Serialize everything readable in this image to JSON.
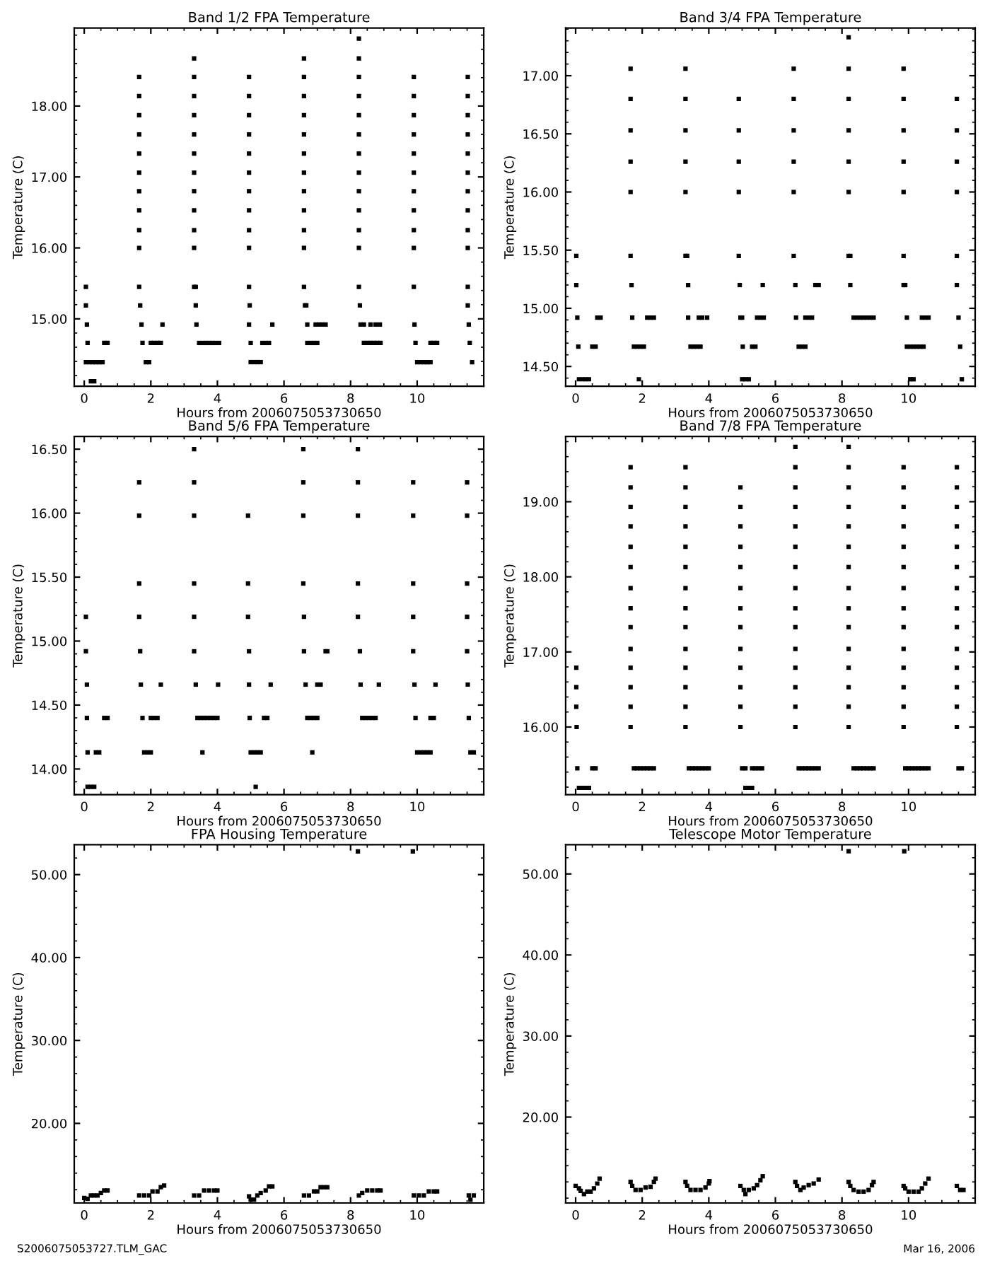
{
  "chart_data": [
    {
      "type": "scatter",
      "title": "Band 1/2 FPA Temperature",
      "xlabel": "Hours from 2006075053730650",
      "ylabel": "Temperature (C)",
      "color": "#000000",
      "marker": "square",
      "grid": false,
      "legend": false,
      "xlim": [
        -0.3,
        12.0
      ],
      "xticks": [
        0,
        2,
        4,
        6,
        8,
        10
      ],
      "ylim": [
        14.05,
        19.1
      ],
      "yticks": [
        {
          "value": 15,
          "label": "15.00"
        },
        {
          "value": 16,
          "label": "16.00"
        },
        {
          "value": 17,
          "label": "17.00"
        },
        {
          "value": 18,
          "label": "18.00"
        }
      ],
      "x": [
        0.05,
        0.05,
        0.08,
        0.1,
        0.05,
        0.15,
        0.25,
        0.35,
        0.45,
        0.55,
        0.2,
        0.3,
        0.6,
        0.7,
        1.65,
        1.65,
        1.65,
        1.65,
        1.65,
        1.65,
        1.65,
        1.65,
        1.65,
        1.65,
        1.65,
        1.68,
        1.72,
        1.75,
        1.85,
        1.95,
        2.0,
        2.1,
        2.2,
        2.3,
        2.35,
        3.3,
        3.3,
        3.3,
        3.3,
        3.3,
        3.3,
        3.3,
        3.3,
        3.3,
        3.3,
        3.3,
        3.3,
        3.35,
        3.35,
        3.37,
        3.45,
        3.55,
        3.65,
        3.75,
        3.85,
        3.95,
        4.05,
        4.95,
        4.95,
        4.95,
        4.95,
        4.95,
        4.95,
        4.95,
        4.95,
        4.95,
        4.95,
        4.95,
        4.97,
        4.95,
        5.0,
        5.0,
        5.1,
        5.2,
        5.3,
        5.35,
        5.45,
        5.55,
        5.65,
        6.6,
        6.6,
        6.6,
        6.6,
        6.6,
        6.6,
        6.6,
        6.6,
        6.6,
        6.6,
        6.6,
        6.6,
        6.63,
        6.67,
        6.7,
        6.7,
        6.8,
        6.9,
        7.0,
        6.95,
        7.05,
        7.15,
        7.25,
        8.25,
        8.25,
        8.25,
        8.25,
        8.25,
        8.25,
        8.25,
        8.25,
        8.25,
        8.25,
        8.25,
        8.25,
        8.25,
        8.28,
        8.3,
        8.4,
        8.4,
        8.5,
        8.6,
        8.7,
        8.8,
        8.9,
        8.6,
        8.75,
        8.88,
        9.9,
        9.9,
        9.9,
        9.9,
        9.9,
        9.9,
        9.9,
        9.9,
        9.9,
        9.9,
        9.9,
        9.92,
        9.95,
        10.0,
        10.1,
        10.2,
        10.3,
        10.4,
        10.4,
        10.5,
        10.6,
        11.52,
        11.52,
        11.52,
        11.52,
        11.52,
        11.52,
        11.52,
        11.52,
        11.52,
        11.52,
        11.52,
        11.52,
        11.55,
        11.58,
        11.65
      ],
      "values": [
        15.45,
        15.19,
        14.92,
        14.66,
        14.39,
        14.39,
        14.39,
        14.39,
        14.39,
        14.39,
        14.12,
        14.12,
        14.66,
        14.66,
        16.0,
        16.25,
        16.53,
        16.8,
        17.06,
        17.33,
        17.6,
        17.87,
        18.14,
        18.41,
        15.45,
        15.19,
        14.92,
        14.66,
        14.39,
        14.39,
        14.66,
        14.66,
        14.66,
        14.66,
        14.92,
        16.0,
        16.25,
        16.53,
        16.8,
        17.06,
        17.33,
        17.6,
        17.87,
        18.14,
        18.41,
        18.67,
        15.45,
        15.45,
        15.19,
        14.92,
        14.66,
        14.66,
        14.66,
        14.66,
        14.66,
        14.66,
        14.66,
        16.0,
        16.25,
        16.53,
        16.8,
        17.06,
        17.33,
        17.6,
        17.87,
        18.14,
        18.41,
        15.45,
        15.19,
        14.92,
        14.66,
        14.39,
        14.39,
        14.39,
        14.39,
        14.66,
        14.66,
        14.66,
        14.92,
        16.0,
        16.25,
        16.53,
        16.8,
        17.06,
        17.33,
        17.6,
        17.87,
        18.14,
        18.41,
        18.67,
        15.45,
        15.19,
        15.19,
        14.92,
        14.66,
        14.66,
        14.66,
        14.66,
        14.92,
        14.92,
        14.92,
        14.92,
        16.0,
        16.25,
        16.53,
        16.8,
        17.06,
        17.33,
        17.6,
        17.87,
        18.14,
        18.41,
        18.67,
        18.95,
        15.45,
        15.19,
        14.92,
        14.92,
        14.66,
        14.66,
        14.66,
        14.66,
        14.66,
        14.66,
        14.92,
        14.92,
        14.92,
        16.0,
        16.25,
        16.53,
        16.8,
        17.06,
        17.33,
        17.6,
        17.87,
        18.14,
        18.41,
        15.45,
        14.92,
        14.66,
        14.39,
        14.39,
        14.39,
        14.39,
        14.39,
        14.66,
        14.66,
        14.66,
        16.0,
        16.25,
        16.53,
        16.8,
        17.06,
        17.33,
        17.6,
        17.87,
        18.14,
        18.41,
        15.45,
        15.19,
        14.92,
        14.66,
        14.39
      ]
    },
    {
      "type": "scatter",
      "title": "Band 3/4 FPA Temperature",
      "xlabel": "Hours from 2006075053730650",
      "ylabel": "Temperature (C)",
      "color": "#000000",
      "marker": "square",
      "grid": false,
      "legend": false,
      "xlim": [
        -0.3,
        12.0
      ],
      "xticks": [
        0,
        2,
        4,
        6,
        8,
        10
      ],
      "ylim": [
        14.33,
        17.41
      ],
      "yticks": [
        {
          "value": 14.5,
          "label": "14.50"
        },
        {
          "value": 15,
          "label": "15.00"
        },
        {
          "value": 15.5,
          "label": "15.50"
        },
        {
          "value": 16,
          "label": "16.00"
        },
        {
          "value": 16.5,
          "label": "16.50"
        },
        {
          "value": 17,
          "label": "17.00"
        }
      ],
      "x": [
        0.02,
        0.02,
        0.05,
        0.08,
        0.1,
        0.2,
        0.3,
        0.4,
        0.5,
        0.6,
        0.65,
        0.75,
        1.65,
        1.65,
        1.65,
        1.65,
        1.65,
        1.65,
        1.68,
        1.7,
        1.75,
        1.85,
        1.95,
        2.05,
        1.9,
        2.15,
        2.25,
        2.35,
        3.3,
        3.3,
        3.3,
        3.3,
        3.3,
        3.3,
        3.35,
        3.38,
        3.38,
        3.45,
        3.55,
        3.65,
        3.75,
        3.7,
        3.8,
        3.95,
        4.9,
        4.9,
        4.9,
        4.9,
        4.9,
        4.93,
        4.95,
        5.0,
        5.02,
        5.0,
        5.1,
        5.2,
        5.3,
        5.4,
        5.45,
        5.55,
        5.65,
        5.62,
        6.55,
        6.55,
        6.55,
        6.55,
        6.55,
        6.55,
        6.6,
        6.62,
        6.7,
        6.8,
        6.9,
        6.9,
        7.0,
        7.1,
        7.2,
        7.3,
        8.2,
        8.2,
        8.2,
        8.2,
        8.2,
        8.2,
        8.2,
        8.25,
        8.25,
        8.35,
        8.45,
        8.55,
        8.65,
        8.75,
        8.85,
        8.95,
        9.85,
        9.85,
        9.85,
        9.85,
        9.85,
        9.85,
        9.85,
        9.9,
        9.95,
        9.95,
        10.05,
        10.15,
        10.25,
        10.35,
        10.45,
        10.05,
        10.15,
        10.4,
        10.5,
        10.6,
        11.45,
        11.45,
        11.45,
        11.45,
        11.45,
        11.45,
        11.5,
        11.55,
        11.6
      ],
      "values": [
        15.45,
        15.2,
        14.92,
        14.67,
        14.39,
        14.39,
        14.39,
        14.39,
        14.67,
        14.67,
        14.92,
        14.92,
        16.0,
        16.26,
        16.53,
        16.8,
        17.06,
        15.45,
        15.2,
        14.92,
        14.67,
        14.67,
        14.67,
        14.67,
        14.39,
        14.92,
        14.92,
        14.92,
        16.0,
        16.26,
        16.53,
        16.8,
        17.06,
        15.45,
        15.45,
        15.2,
        14.92,
        14.67,
        14.67,
        14.67,
        14.67,
        14.92,
        14.92,
        14.92,
        16.0,
        16.26,
        16.53,
        16.8,
        15.45,
        15.2,
        14.92,
        14.92,
        14.67,
        14.39,
        14.39,
        14.39,
        14.67,
        14.67,
        14.92,
        14.92,
        14.92,
        15.2,
        16.0,
        16.26,
        16.53,
        16.8,
        17.06,
        15.45,
        15.2,
        14.92,
        14.67,
        14.67,
        14.67,
        14.92,
        14.92,
        14.92,
        15.2,
        15.2,
        16.0,
        16.26,
        16.53,
        16.8,
        17.06,
        17.33,
        15.45,
        15.45,
        15.2,
        14.92,
        14.92,
        14.92,
        14.92,
        14.92,
        14.92,
        14.92,
        16.0,
        16.26,
        16.53,
        16.8,
        17.06,
        15.45,
        15.2,
        15.2,
        14.92,
        14.67,
        14.67,
        14.67,
        14.67,
        14.67,
        14.67,
        14.39,
        14.39,
        14.92,
        14.92,
        14.92,
        16.0,
        16.26,
        16.53,
        16.8,
        15.45,
        15.2,
        14.92,
        14.67,
        14.39
      ]
    },
    {
      "type": "scatter",
      "title": "Band 5/6 FPA Temperature",
      "xlabel": "Hours from 2006075053730650",
      "ylabel": "Temperature (C)",
      "color": "#000000",
      "marker": "square",
      "grid": false,
      "legend": false,
      "xlim": [
        -0.3,
        12.0
      ],
      "xticks": [
        0,
        2,
        4,
        6,
        8,
        10
      ],
      "ylim": [
        13.8,
        16.6
      ],
      "yticks": [
        {
          "value": 14,
          "label": "14.00"
        },
        {
          "value": 14.5,
          "label": "14.50"
        },
        {
          "value": 15,
          "label": "15.00"
        },
        {
          "value": 15.5,
          "label": "15.50"
        },
        {
          "value": 16,
          "label": "16.00"
        },
        {
          "value": 16.5,
          "label": "16.50"
        }
      ],
      "x": [
        0.05,
        0.05,
        0.08,
        0.08,
        0.1,
        0.1,
        0.2,
        0.3,
        0.35,
        0.45,
        0.6,
        0.7,
        1.65,
        1.65,
        1.65,
        1.65,
        1.68,
        1.7,
        1.75,
        1.8,
        1.9,
        2.0,
        2.0,
        2.1,
        2.2,
        2.3,
        3.3,
        3.3,
        3.3,
        3.3,
        3.3,
        3.3,
        3.35,
        3.4,
        3.5,
        3.6,
        3.7,
        3.8,
        3.9,
        4.0,
        3.55,
        4.02,
        4.92,
        4.92,
        4.92,
        4.95,
        4.95,
        4.97,
        5.0,
        5.1,
        5.2,
        5.3,
        5.15,
        5.4,
        5.5,
        5.6,
        6.58,
        6.58,
        6.58,
        6.58,
        6.6,
        6.6,
        6.65,
        6.7,
        6.8,
        6.9,
        7.0,
        6.85,
        7.0,
        7.1,
        7.25,
        7.3,
        8.22,
        8.22,
        8.22,
        8.22,
        8.22,
        8.28,
        8.3,
        8.35,
        8.45,
        8.55,
        8.65,
        8.75,
        8.85,
        9.88,
        9.88,
        9.88,
        9.88,
        9.88,
        9.92,
        9.95,
        10.0,
        10.1,
        10.2,
        10.3,
        10.4,
        10.4,
        10.5,
        10.55,
        11.5,
        11.5,
        11.5,
        11.5,
        11.5,
        11.52,
        11.55,
        11.6,
        11.7
      ],
      "values": [
        15.19,
        14.92,
        14.66,
        14.4,
        14.13,
        13.86,
        13.86,
        13.86,
        14.13,
        14.13,
        14.4,
        14.4,
        15.45,
        15.98,
        16.24,
        15.19,
        14.92,
        14.66,
        14.4,
        14.13,
        14.13,
        14.13,
        14.4,
        14.4,
        14.4,
        14.66,
        15.45,
        15.98,
        16.24,
        16.5,
        15.19,
        14.92,
        14.66,
        14.4,
        14.4,
        14.4,
        14.4,
        14.4,
        14.4,
        14.4,
        14.13,
        14.66,
        15.45,
        15.98,
        15.19,
        14.92,
        14.66,
        14.4,
        14.13,
        14.13,
        14.13,
        14.13,
        13.86,
        14.4,
        14.4,
        14.66,
        15.45,
        15.98,
        16.24,
        16.5,
        15.19,
        14.92,
        14.66,
        14.4,
        14.4,
        14.4,
        14.4,
        14.13,
        14.66,
        14.66,
        14.92,
        14.92,
        15.45,
        15.98,
        16.24,
        16.5,
        15.19,
        14.92,
        14.66,
        14.4,
        14.4,
        14.4,
        14.4,
        14.4,
        14.66,
        15.45,
        15.98,
        16.24,
        15.19,
        14.92,
        14.66,
        14.4,
        14.13,
        14.13,
        14.13,
        14.13,
        14.13,
        14.4,
        14.4,
        14.66,
        15.45,
        15.98,
        16.24,
        15.19,
        14.92,
        14.66,
        14.4,
        14.13,
        14.13
      ]
    },
    {
      "type": "scatter",
      "title": "Band 7/8 FPA Temperature",
      "xlabel": "Hours from 2006075053730650",
      "ylabel": "Temperature (C)",
      "color": "#000000",
      "marker": "square",
      "grid": false,
      "legend": false,
      "xlim": [
        -0.3,
        12.0
      ],
      "xticks": [
        0,
        2,
        4,
        6,
        8,
        10
      ],
      "ylim": [
        15.1,
        19.87
      ],
      "yticks": [
        {
          "value": 16,
          "label": "16.00"
        },
        {
          "value": 17,
          "label": "17.00"
        },
        {
          "value": 18,
          "label": "18.00"
        },
        {
          "value": 19,
          "label": "19.00"
        }
      ],
      "x": [
        0.02,
        0.02,
        0.02,
        0.03,
        0.05,
        0.1,
        0.2,
        0.3,
        0.4,
        0.5,
        0.6,
        1.65,
        1.65,
        1.65,
        1.65,
        1.65,
        1.65,
        1.65,
        1.65,
        1.65,
        1.65,
        1.65,
        1.65,
        1.65,
        1.65,
        1.75,
        1.85,
        1.95,
        2.05,
        2.15,
        2.25,
        2.35,
        3.3,
        3.3,
        3.3,
        3.3,
        3.3,
        3.3,
        3.3,
        3.3,
        3.3,
        3.3,
        3.3,
        3.3,
        3.3,
        3.3,
        3.4,
        3.5,
        3.6,
        3.7,
        3.8,
        3.9,
        4.0,
        4.95,
        4.95,
        4.95,
        4.95,
        4.95,
        4.95,
        4.95,
        4.95,
        4.95,
        4.95,
        4.95,
        4.95,
        4.95,
        5.0,
        5.1,
        5.1,
        5.2,
        5.3,
        5.3,
        5.4,
        5.5,
        5.6,
        6.6,
        6.6,
        6.6,
        6.6,
        6.6,
        6.6,
        6.6,
        6.6,
        6.6,
        6.6,
        6.6,
        6.6,
        6.6,
        6.6,
        6.6,
        6.7,
        6.8,
        6.9,
        7.0,
        7.1,
        7.2,
        7.3,
        8.2,
        8.2,
        8.2,
        8.2,
        8.2,
        8.2,
        8.2,
        8.2,
        8.2,
        8.2,
        8.2,
        8.2,
        8.2,
        8.2,
        8.2,
        8.35,
        8.45,
        8.55,
        8.65,
        8.75,
        8.85,
        8.95,
        9.85,
        9.85,
        9.85,
        9.85,
        9.85,
        9.85,
        9.85,
        9.85,
        9.85,
        9.85,
        9.85,
        9.85,
        9.85,
        9.85,
        9.9,
        10.0,
        10.1,
        10.2,
        10.3,
        10.4,
        10.5,
        10.6,
        11.45,
        11.45,
        11.45,
        11.45,
        11.45,
        11.45,
        11.45,
        11.45,
        11.45,
        11.45,
        11.45,
        11.45,
        11.45,
        11.45,
        11.5,
        11.6
      ],
      "values": [
        16.79,
        16.53,
        16.27,
        16.0,
        15.45,
        15.19,
        15.19,
        15.19,
        15.19,
        15.45,
        15.45,
        16.0,
        16.27,
        16.53,
        16.79,
        17.04,
        17.33,
        17.58,
        17.85,
        18.13,
        18.4,
        18.67,
        18.93,
        19.19,
        19.46,
        15.45,
        15.45,
        15.45,
        15.45,
        15.45,
        15.45,
        15.45,
        16.0,
        16.27,
        16.53,
        16.79,
        17.04,
        17.33,
        17.58,
        17.85,
        18.13,
        18.4,
        18.67,
        18.93,
        19.19,
        19.46,
        15.45,
        15.45,
        15.45,
        15.45,
        15.45,
        15.45,
        15.45,
        16.0,
        16.27,
        16.53,
        16.79,
        17.04,
        17.33,
        17.58,
        17.85,
        18.13,
        18.4,
        18.67,
        18.93,
        19.19,
        15.45,
        15.45,
        15.19,
        15.19,
        15.19,
        15.45,
        15.45,
        15.45,
        15.45,
        16.0,
        16.27,
        16.53,
        16.79,
        17.04,
        17.33,
        17.58,
        17.85,
        18.13,
        18.4,
        18.67,
        18.93,
        19.19,
        19.46,
        19.73,
        15.45,
        15.45,
        15.45,
        15.45,
        15.45,
        15.45,
        15.45,
        16.0,
        16.27,
        16.53,
        16.79,
        17.04,
        17.33,
        17.58,
        17.85,
        18.13,
        18.4,
        18.67,
        18.93,
        19.19,
        19.46,
        19.73,
        15.45,
        15.45,
        15.45,
        15.45,
        15.45,
        15.45,
        15.45,
        16.0,
        16.27,
        16.53,
        16.79,
        17.04,
        17.33,
        17.58,
        17.85,
        18.13,
        18.4,
        18.67,
        18.93,
        19.19,
        19.46,
        15.45,
        15.45,
        15.45,
        15.45,
        15.45,
        15.45,
        15.45,
        15.45,
        16.0,
        16.27,
        16.53,
        16.79,
        17.04,
        17.33,
        17.58,
        17.85,
        18.13,
        18.4,
        18.67,
        18.93,
        19.19,
        19.46,
        15.45,
        15.45
      ]
    },
    {
      "type": "scatter",
      "title": "FPA Housing Temperature",
      "xlabel": "Hours from 2006075053730650",
      "ylabel": "Temperature (C)",
      "color": "#000000",
      "marker": "square",
      "grid": false,
      "legend": false,
      "annotations": [
        "S2006075053727.TLM_GAC"
      ],
      "xlim": [
        -0.3,
        12.0
      ],
      "xticks": [
        0,
        2,
        4,
        6,
        8,
        10
      ],
      "ylim": [
        10.4,
        53.6
      ],
      "yticks": [
        {
          "value": 20,
          "label": "20.00"
        },
        {
          "value": 30,
          "label": "30.00"
        },
        {
          "value": 40,
          "label": "40.00"
        },
        {
          "value": 50,
          "label": "50.00"
        }
      ],
      "x": [
        0.0,
        0.1,
        0.2,
        0.3,
        0.4,
        0.5,
        0.6,
        0.7,
        1.65,
        1.8,
        1.95,
        2.05,
        2.2,
        2.3,
        2.4,
        3.3,
        3.45,
        3.6,
        3.75,
        3.9,
        4.0,
        4.95,
        5.0,
        5.1,
        5.2,
        5.3,
        5.45,
        5.55,
        5.65,
        6.6,
        6.75,
        6.9,
        7.0,
        7.1,
        7.2,
        7.3,
        8.25,
        8.35,
        8.5,
        8.65,
        8.8,
        8.9,
        8.22,
        9.9,
        10.05,
        10.2,
        10.35,
        10.5,
        10.6,
        9.87,
        11.55,
        11.6,
        11.7
      ],
      "values": [
        11.0,
        10.9,
        11.3,
        11.3,
        11.3,
        11.6,
        11.9,
        11.9,
        11.3,
        11.3,
        11.3,
        11.8,
        11.8,
        12.3,
        12.5,
        11.3,
        11.3,
        11.9,
        11.9,
        11.9,
        11.9,
        11.2,
        10.8,
        10.8,
        11.3,
        11.6,
        11.9,
        12.4,
        12.4,
        11.3,
        11.3,
        11.8,
        11.8,
        12.3,
        12.3,
        12.3,
        11.3,
        11.6,
        11.9,
        11.9,
        11.9,
        11.9,
        52.8,
        11.3,
        11.3,
        11.3,
        11.8,
        11.8,
        11.8,
        52.8,
        11.3,
        10.8,
        11.3
      ]
    },
    {
      "type": "scatter",
      "title": "Telescope Motor Temperature",
      "xlabel": "Hours from 2006075053730650",
      "ylabel": "Temperature (C)",
      "color": "#000000",
      "marker": "square",
      "grid": false,
      "legend": false,
      "annotations": [
        "Mar 16, 2006"
      ],
      "xlim": [
        -0.3,
        12.0
      ],
      "xticks": [
        0,
        2,
        4,
        6,
        8,
        10
      ],
      "ylim": [
        9.4,
        53.6
      ],
      "yticks": [
        {
          "value": 20,
          "label": "20.00"
        },
        {
          "value": 30,
          "label": "30.00"
        },
        {
          "value": 40,
          "label": "40.00"
        },
        {
          "value": 50,
          "label": "50.00"
        }
      ],
      "x": [
        0.0,
        0.1,
        0.15,
        0.25,
        0.35,
        0.45,
        0.55,
        0.65,
        0.72,
        1.65,
        1.7,
        1.8,
        1.95,
        2.1,
        2.25,
        2.35,
        2.4,
        3.3,
        3.35,
        3.45,
        3.6,
        3.75,
        3.9,
        4.0,
        4.02,
        4.95,
        5.05,
        5.1,
        5.2,
        5.35,
        5.45,
        5.55,
        5.62,
        6.6,
        6.65,
        6.75,
        6.85,
        7.0,
        7.15,
        7.3,
        8.2,
        8.25,
        8.35,
        8.5,
        8.65,
        8.8,
        8.9,
        8.95,
        8.2,
        9.85,
        9.9,
        10.0,
        10.15,
        10.3,
        10.4,
        10.5,
        10.6,
        9.87,
        11.45,
        11.55,
        11.65
      ],
      "values": [
        11.5,
        11.2,
        10.9,
        10.5,
        10.8,
        10.8,
        11.2,
        11.8,
        12.4,
        12.0,
        11.5,
        11.0,
        11.0,
        11.3,
        11.4,
        12.0,
        12.4,
        12.0,
        11.5,
        11.0,
        11.0,
        11.0,
        11.3,
        11.8,
        12.1,
        11.5,
        11.0,
        10.5,
        11.0,
        11.2,
        11.6,
        12.2,
        12.7,
        12.0,
        11.5,
        11.0,
        11.3,
        11.6,
        11.8,
        12.3,
        12.0,
        11.5,
        11.0,
        10.8,
        10.8,
        11.0,
        11.6,
        12.0,
        52.8,
        11.5,
        11.2,
        10.8,
        10.8,
        10.8,
        11.2,
        11.8,
        12.4,
        52.8,
        11.5,
        11.0,
        11.0
      ]
    }
  ]
}
